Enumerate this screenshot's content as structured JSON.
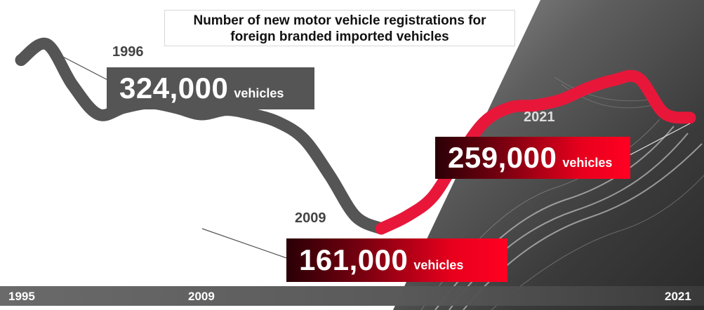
{
  "title": [
    "Number of new motor vehicle registrations for",
    "foreign branded imported vehicles"
  ],
  "colors": {
    "pre_2009_line": "#555555",
    "post_2009_line": "#e8173a",
    "photo_background": "#4a4a4a"
  },
  "chart_data": {
    "type": "line",
    "title": "Number of new motor vehicle registrations for foreign branded imported vehicles",
    "x_ticks": [
      "1995",
      "2009",
      "2021"
    ],
    "xlim": [
      1995,
      2021
    ],
    "ylim": [
      150000,
      340000
    ],
    "series": [
      {
        "segment": "1995-2009",
        "color": "#555555",
        "x": [
          1995,
          1996,
          1997,
          1998,
          1999,
          2000,
          2001,
          2002,
          2003,
          2004,
          2005,
          2006,
          2007,
          2008,
          2009
        ],
        "values": [
          310000,
          324000,
          288000,
          262000,
          268000,
          272000,
          268000,
          262000,
          266000,
          262000,
          255000,
          240000,
          208000,
          172000,
          161000
        ]
      },
      {
        "segment": "2009-2021",
        "color": "#e8173a",
        "x": [
          2009,
          2010,
          2011,
          2012,
          2013,
          2014,
          2015,
          2016,
          2017,
          2018,
          2019,
          2020,
          2021
        ],
        "values": [
          161000,
          172000,
          189000,
          224000,
          255000,
          268000,
          270000,
          275000,
          285000,
          292000,
          294000,
          263000,
          259000
        ]
      }
    ],
    "annotations": [
      {
        "year": "1996",
        "value": "324,000",
        "unit": "vehicles"
      },
      {
        "year": "2009",
        "value": "161,000",
        "unit": "vehicles"
      },
      {
        "year": "2021",
        "value": "259,000",
        "unit": "vehicles"
      }
    ]
  }
}
